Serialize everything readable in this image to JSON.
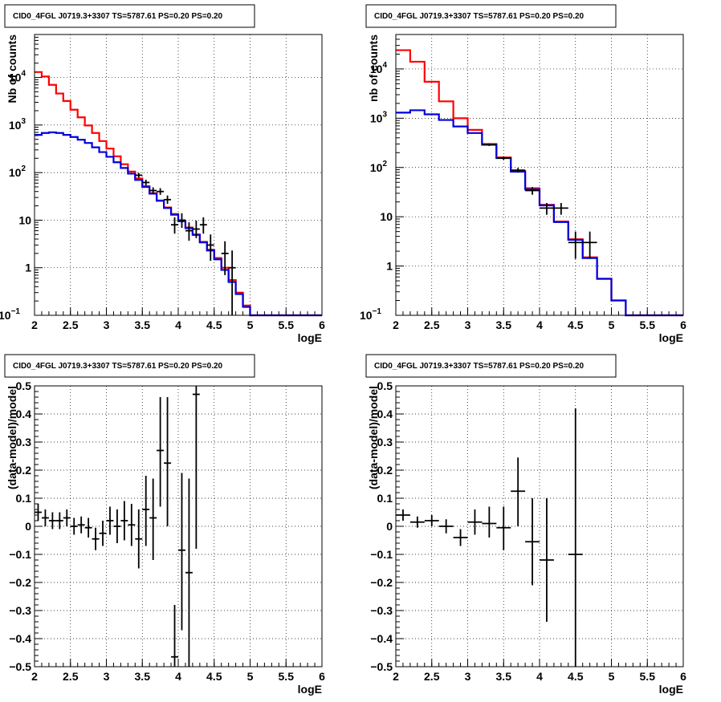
{
  "chart_data": [
    {
      "type": "histogram",
      "title": "CID0_4FGL J0719.3+3307 TS=5787.61 PS=0.20 PS=0.20",
      "xlabel": "logE",
      "ylabel": "Nb of counts",
      "xlim": [
        2,
        6
      ],
      "ylim": [
        0.1,
        80000
      ],
      "log_y": true,
      "grid": true,
      "xticks": [
        "2",
        "2.5",
        "3",
        "3.5",
        "4",
        "4.5",
        "5",
        "5.5",
        "6"
      ],
      "yticks": [
        {
          "v": 0.1,
          "label": "10",
          "sup": "−1"
        },
        {
          "v": 1,
          "label": "1",
          "sup": ""
        },
        {
          "v": 10,
          "label": "10",
          "sup": ""
        },
        {
          "v": 100,
          "label": "10",
          "sup": "2"
        },
        {
          "v": 1000,
          "label": "10",
          "sup": "3"
        },
        {
          "v": 10000,
          "label": "10",
          "sup": "4"
        }
      ],
      "bin_edges": [
        2.0,
        2.1,
        2.2,
        2.3,
        2.4,
        2.5,
        2.6,
        2.7,
        2.8,
        2.9,
        3.0,
        3.1,
        3.2,
        3.3,
        3.4,
        3.5,
        3.6,
        3.7,
        3.8,
        3.9,
        4.0,
        4.1,
        4.2,
        4.3,
        4.4,
        4.5,
        4.6,
        4.7,
        4.8,
        4.9,
        5.0,
        5.1,
        5.2,
        5.3,
        5.4,
        5.5,
        5.6,
        5.7,
        5.8,
        5.9,
        6.0
      ],
      "series": [
        {
          "color": "#ff0000",
          "kind": "step",
          "values": [
            13000,
            10500,
            7000,
            4600,
            3200,
            2100,
            1450,
            980,
            680,
            460,
            320,
            220,
            150,
            105,
            75,
            52,
            37,
            26,
            18.5,
            13.5,
            9.8,
            7.0,
            5.0,
            3.5,
            2.4,
            1.6,
            1.0,
            0.55,
            0.3,
            0.16,
            0.1,
            0.1,
            0.1,
            0.1,
            0.1,
            0.1,
            0.1,
            0.1,
            0.1,
            0.1
          ]
        },
        {
          "color": "#0000dd",
          "kind": "step",
          "values": [
            620,
            680,
            700,
            680,
            620,
            560,
            490,
            420,
            340,
            270,
            215,
            165,
            125,
            95,
            70,
            50,
            36,
            25.5,
            18,
            13,
            9.5,
            6.8,
            4.9,
            3.4,
            2.3,
            1.5,
            0.9,
            0.5,
            0.28,
            0.15,
            0.1,
            0.1,
            0.1,
            0.1,
            0.1,
            0.1,
            0.1,
            0.1,
            0.1,
            0.1
          ]
        },
        {
          "color": "#000000",
          "kind": "errors",
          "points": [
            {
              "x": 3.45,
              "y": 88,
              "lo": 78,
              "hi": 99,
              "xerr": 0.05
            },
            {
              "x": 3.55,
              "y": 62,
              "lo": 54,
              "hi": 71,
              "xerr": 0.05
            },
            {
              "x": 3.65,
              "y": 42,
              "lo": 36,
              "hi": 49,
              "xerr": 0.05
            },
            {
              "x": 3.75,
              "y": 40,
              "lo": 34,
              "hi": 47,
              "xerr": 0.05
            },
            {
              "x": 3.85,
              "y": 27,
              "lo": 22,
              "hi": 33,
              "xerr": 0.05
            },
            {
              "x": 3.95,
              "y": 8,
              "lo": 5.2,
              "hi": 11.5,
              "xerr": 0.05
            },
            {
              "x": 4.05,
              "y": 10,
              "lo": 6.9,
              "hi": 14,
              "xerr": 0.05
            },
            {
              "x": 4.15,
              "y": 6,
              "lo": 3.7,
              "hi": 9,
              "xerr": 0.05
            },
            {
              "x": 4.25,
              "y": 6.5,
              "lo": 4.2,
              "hi": 9.8,
              "xerr": 0.05
            },
            {
              "x": 4.35,
              "y": 8,
              "lo": 5.2,
              "hi": 11.5,
              "xerr": 0.05
            },
            {
              "x": 4.45,
              "y": 3,
              "lo": 1.4,
              "hi": 5,
              "xerr": 0.05
            },
            {
              "x": 4.65,
              "y": 2,
              "lo": 0.7,
              "hi": 3.6,
              "xerr": 0.05
            },
            {
              "x": 4.75,
              "y": 1,
              "lo": 0.1,
              "hi": 2.3,
              "xerr": 0.05
            }
          ]
        }
      ]
    },
    {
      "type": "histogram",
      "title": "CID0_4FGL J0719.3+3307 TS=5787.61 PS=0.20 PS=0.20",
      "xlabel": "logE",
      "ylabel": "nb of counts",
      "xlim": [
        2,
        6
      ],
      "ylim": [
        0.1,
        50000
      ],
      "log_y": true,
      "grid": true,
      "xticks": [
        "2",
        "2.5",
        "3",
        "3.5",
        "4",
        "4.5",
        "5",
        "5.5",
        "6"
      ],
      "yticks": [
        {
          "v": 0.1,
          "label": "10",
          "sup": "−1"
        },
        {
          "v": 1,
          "label": "1",
          "sup": ""
        },
        {
          "v": 10,
          "label": "10",
          "sup": ""
        },
        {
          "v": 100,
          "label": "10",
          "sup": "2"
        },
        {
          "v": 1000,
          "label": "10",
          "sup": "3"
        },
        {
          "v": 10000,
          "label": "10",
          "sup": "4"
        }
      ],
      "bin_edges": [
        2.0,
        2.2,
        2.4,
        2.6,
        2.8,
        3.0,
        3.2,
        3.4,
        3.6,
        3.8,
        4.0,
        4.2,
        4.4,
        4.6,
        4.8,
        5.0,
        5.2,
        5.4,
        5.6,
        5.8,
        6.0
      ],
      "series": [
        {
          "color": "#ff0000",
          "kind": "step",
          "values": [
            24000,
            14000,
            5500,
            2200,
            1000,
            580,
            300,
            160,
            85,
            38,
            17.5,
            8,
            3.5,
            1.5,
            0.55,
            0.2,
            0.1,
            0.1,
            0.1,
            0.1
          ]
        },
        {
          "color": "#0000dd",
          "kind": "step",
          "values": [
            1300,
            1450,
            1200,
            920,
            680,
            500,
            290,
            155,
            82,
            36,
            17,
            7.8,
            3.4,
            1.45,
            0.55,
            0.2,
            0.1,
            0.1,
            0.1,
            0.1
          ]
        },
        {
          "color": "#000000",
          "kind": "errors",
          "points": [
            {
              "x": 3.3,
              "y": 290,
              "lo": 273,
              "hi": 307,
              "xerr": 0.1
            },
            {
              "x": 3.5,
              "y": 155,
              "lo": 143,
              "hi": 168,
              "xerr": 0.1
            },
            {
              "x": 3.7,
              "y": 88,
              "lo": 79,
              "hi": 98,
              "xerr": 0.1
            },
            {
              "x": 3.9,
              "y": 34,
              "lo": 28,
              "hi": 40,
              "xerr": 0.1
            },
            {
              "x": 4.1,
              "y": 15,
              "lo": 11,
              "hi": 19,
              "xerr": 0.1
            },
            {
              "x": 4.3,
              "y": 15,
              "lo": 11,
              "hi": 19,
              "xerr": 0.1
            },
            {
              "x": 4.5,
              "y": 3,
              "lo": 1.4,
              "hi": 5,
              "xerr": 0.1
            },
            {
              "x": 4.7,
              "y": 3,
              "lo": 1.4,
              "hi": 5,
              "xerr": 0.1
            }
          ]
        }
      ]
    },
    {
      "type": "scatter",
      "title": "CID0_4FGL J0719.3+3307 TS=5787.61 PS=0.20 PS=0.20",
      "xlabel": "logE",
      "ylabel": "(data-model)/model",
      "xlim": [
        2,
        6
      ],
      "ylim": [
        -0.5,
        0.5
      ],
      "log_y": false,
      "grid": true,
      "xticks": [
        "2",
        "2.5",
        "3",
        "3.5",
        "4",
        "4.5",
        "5",
        "5.5",
        "6"
      ],
      "yticks": [
        {
          "v": -0.5,
          "label": "−0.5"
        },
        {
          "v": -0.4,
          "label": "−0.4"
        },
        {
          "v": -0.3,
          "label": "−0.3"
        },
        {
          "v": -0.2,
          "label": "−0.2"
        },
        {
          "v": -0.1,
          "label": "−0.1"
        },
        {
          "v": 0,
          "label": "0"
        },
        {
          "v": 0.1,
          "label": "0.1"
        },
        {
          "v": 0.2,
          "label": "0.2"
        },
        {
          "v": 0.3,
          "label": "0.3"
        },
        {
          "v": 0.4,
          "label": "0.4"
        },
        {
          "v": 0.5,
          "label": "0.5"
        }
      ],
      "series": [
        {
          "color": "#000000",
          "kind": "errors",
          "points": [
            {
              "x": 2.05,
              "y": 0.05,
              "lo": 0.02,
              "hi": 0.08,
              "xerr": 0.05
            },
            {
              "x": 2.15,
              "y": 0.03,
              "lo": 0.0,
              "hi": 0.06,
              "xerr": 0.05
            },
            {
              "x": 2.25,
              "y": 0.02,
              "lo": -0.01,
              "hi": 0.05,
              "xerr": 0.05
            },
            {
              "x": 2.35,
              "y": 0.02,
              "lo": -0.01,
              "hi": 0.05,
              "xerr": 0.05
            },
            {
              "x": 2.45,
              "y": 0.03,
              "lo": 0.0,
              "hi": 0.06,
              "xerr": 0.05
            },
            {
              "x": 2.55,
              "y": 0.0,
              "lo": -0.03,
              "hi": 0.03,
              "xerr": 0.05
            },
            {
              "x": 2.65,
              "y": 0.005,
              "lo": -0.025,
              "hi": 0.035,
              "xerr": 0.05
            },
            {
              "x": 2.75,
              "y": -0.005,
              "lo": -0.04,
              "hi": 0.03,
              "xerr": 0.05
            },
            {
              "x": 2.85,
              "y": -0.045,
              "lo": -0.085,
              "hi": -0.005,
              "xerr": 0.05
            },
            {
              "x": 2.95,
              "y": -0.025,
              "lo": -0.07,
              "hi": 0.02,
              "xerr": 0.05
            },
            {
              "x": 3.05,
              "y": 0.02,
              "lo": -0.03,
              "hi": 0.07,
              "xerr": 0.05
            },
            {
              "x": 3.15,
              "y": 0.0,
              "lo": -0.06,
              "hi": 0.06,
              "xerr": 0.05
            },
            {
              "x": 3.25,
              "y": 0.02,
              "lo": -0.05,
              "hi": 0.09,
              "xerr": 0.05
            },
            {
              "x": 3.35,
              "y": 0.005,
              "lo": -0.07,
              "hi": 0.08,
              "xerr": 0.05
            },
            {
              "x": 3.45,
              "y": -0.045,
              "lo": -0.15,
              "hi": 0.06,
              "xerr": 0.05
            },
            {
              "x": 3.55,
              "y": 0.06,
              "lo": -0.07,
              "hi": 0.18,
              "xerr": 0.05
            },
            {
              "x": 3.65,
              "y": 0.03,
              "lo": -0.12,
              "hi": 0.17,
              "xerr": 0.05
            },
            {
              "x": 3.75,
              "y": 0.27,
              "lo": 0.07,
              "hi": 0.46,
              "xerr": 0.05
            },
            {
              "x": 3.85,
              "y": 0.225,
              "lo": 0.0,
              "hi": 0.46,
              "xerr": 0.05
            },
            {
              "x": 3.95,
              "y": -0.465,
              "lo": -0.65,
              "hi": -0.28,
              "xerr": 0.05
            },
            {
              "x": 4.05,
              "y": -0.085,
              "lo": -0.37,
              "hi": 0.19,
              "xerr": 0.05
            },
            {
              "x": 4.15,
              "y": -0.165,
              "lo": -0.5,
              "hi": 0.17,
              "xerr": 0.05
            },
            {
              "x": 4.25,
              "y": 0.47,
              "lo": -0.08,
              "hi": 0.5,
              "xerr": 0.05
            }
          ]
        }
      ]
    },
    {
      "type": "scatter",
      "title": "CID0_4FGL J0719.3+3307 TS=5787.61 PS=0.20 PS=0.20",
      "xlabel": "logE",
      "ylabel": "(data-model)/model",
      "xlim": [
        2,
        6
      ],
      "ylim": [
        -0.5,
        0.5
      ],
      "log_y": false,
      "grid": true,
      "xticks": [
        "2",
        "2.5",
        "3",
        "3.5",
        "4",
        "4.5",
        "5",
        "5.5",
        "6"
      ],
      "yticks": [
        {
          "v": -0.5,
          "label": "−0.5"
        },
        {
          "v": -0.4,
          "label": "−0.4"
        },
        {
          "v": -0.3,
          "label": "−0.3"
        },
        {
          "v": -0.2,
          "label": "−0.2"
        },
        {
          "v": -0.1,
          "label": "−0.1"
        },
        {
          "v": 0,
          "label": "0"
        },
        {
          "v": 0.1,
          "label": "0.1"
        },
        {
          "v": 0.2,
          "label": "0.2"
        },
        {
          "v": 0.3,
          "label": "0.3"
        },
        {
          "v": 0.4,
          "label": "0.4"
        },
        {
          "v": 0.5,
          "label": "0.5"
        }
      ],
      "series": [
        {
          "color": "#000000",
          "kind": "errors",
          "points": [
            {
              "x": 2.1,
              "y": 0.04,
              "lo": 0.02,
              "hi": 0.06,
              "xerr": 0.1
            },
            {
              "x": 2.3,
              "y": 0.015,
              "lo": -0.005,
              "hi": 0.035,
              "xerr": 0.1
            },
            {
              "x": 2.5,
              "y": 0.02,
              "lo": 0.0,
              "hi": 0.04,
              "xerr": 0.1
            },
            {
              "x": 2.7,
              "y": 0.0,
              "lo": -0.025,
              "hi": 0.025,
              "xerr": 0.1
            },
            {
              "x": 2.9,
              "y": -0.04,
              "lo": -0.07,
              "hi": -0.01,
              "xerr": 0.1
            },
            {
              "x": 3.1,
              "y": 0.015,
              "lo": -0.03,
              "hi": 0.06,
              "xerr": 0.1
            },
            {
              "x": 3.3,
              "y": 0.01,
              "lo": -0.04,
              "hi": 0.07,
              "xerr": 0.1
            },
            {
              "x": 3.5,
              "y": -0.005,
              "lo": -0.085,
              "hi": 0.07,
              "xerr": 0.1
            },
            {
              "x": 3.7,
              "y": 0.125,
              "lo": 0.0,
              "hi": 0.245,
              "xerr": 0.1
            },
            {
              "x": 3.9,
              "y": -0.055,
              "lo": -0.21,
              "hi": 0.1,
              "xerr": 0.1
            },
            {
              "x": 4.1,
              "y": -0.12,
              "lo": -0.34,
              "hi": 0.1,
              "xerr": 0.1
            },
            {
              "x": 4.5,
              "y": -0.1,
              "lo": -0.5,
              "hi": 0.42,
              "xerr": 0.1
            }
          ]
        }
      ]
    }
  ]
}
